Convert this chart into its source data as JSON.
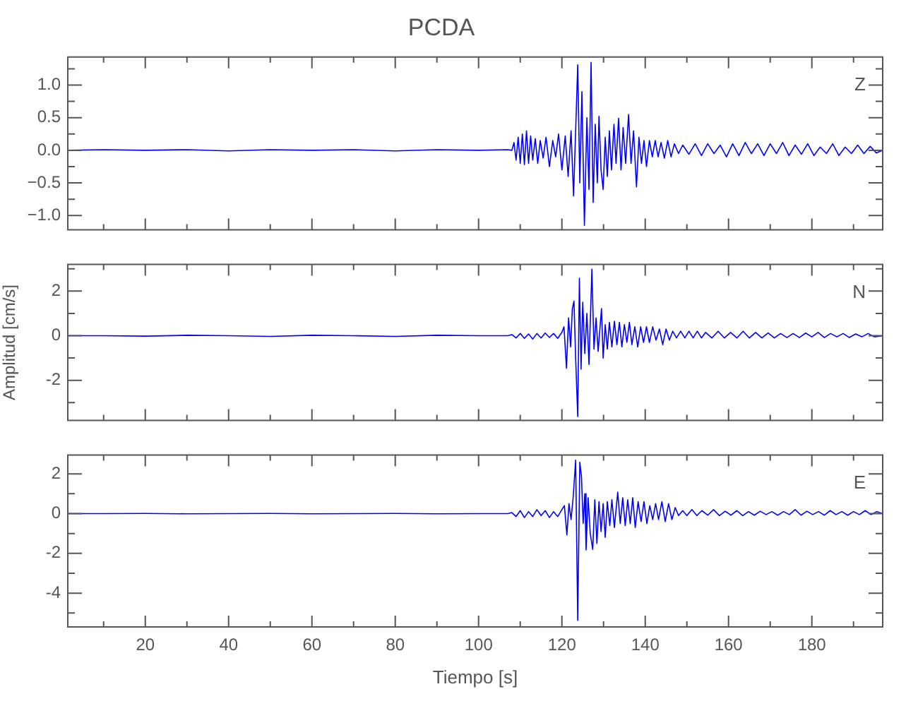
{
  "chart_data": [
    {
      "type": "line",
      "title": "PCDA",
      "annotations": [
        "Z"
      ],
      "xlim": [
        1.4,
        197
      ],
      "ylim": [
        -1.22,
        1.43
      ],
      "grid": false,
      "legend": false,
      "tick_labels": "y",
      "marker": "none",
      "line_style": "solid",
      "xticks": [
        {
          "value": 10,
          "label": null
        },
        20,
        {
          "value": 30,
          "label": null
        },
        40,
        {
          "value": 50,
          "label": null
        },
        60,
        {
          "value": 70,
          "label": null
        },
        80,
        {
          "value": 90,
          "label": null
        },
        100,
        {
          "value": 110,
          "label": null
        },
        120,
        {
          "value": 130,
          "label": null
        },
        140,
        {
          "value": 150,
          "label": null
        },
        160,
        {
          "value": 170,
          "label": null
        },
        180,
        {
          "value": 190,
          "label": null
        }
      ],
      "yticks": [
        {
          "value": 1.25,
          "label": null
        },
        {
          "value": 1,
          "label": "1.0"
        },
        {
          "value": 0.75,
          "label": null
        },
        {
          "value": 0.5,
          "label": "0.5"
        },
        {
          "value": 0.25,
          "label": null
        },
        {
          "value": 0,
          "label": "0.0"
        },
        {
          "value": -0.25,
          "label": null
        },
        {
          "value": -0.5,
          "label": "−0.5"
        },
        {
          "value": -0.75,
          "label": null
        },
        {
          "value": -1,
          "label": "−1.0"
        }
      ],
      "series": [
        {
          "color": "#0000ff",
          "x": [
            1.4,
            10,
            20,
            30,
            40,
            50,
            60,
            70,
            80,
            90,
            100,
            107,
            108,
            108.5,
            109,
            109.5,
            110,
            110.5,
            111,
            111.5,
            112,
            112.5,
            113,
            113.6,
            114.2,
            114.8,
            115.5,
            116.2,
            117,
            117.8,
            118.5,
            119.2,
            120,
            120.8,
            121.5,
            122.2,
            122.8,
            123.3,
            123.8,
            124.3,
            124.8,
            125.4,
            126,
            126.5,
            127,
            127.5,
            128,
            128.5,
            128.9,
            129.4,
            129.9,
            130.4,
            130.9,
            131.4,
            131.9,
            132.5,
            133,
            133.6,
            134.2,
            134.7,
            135.3,
            136,
            136.6,
            137.2,
            137.9,
            138.5,
            139.1,
            139.7,
            140.3,
            141,
            141.7,
            142.4,
            143.1,
            143.8,
            144.6,
            145.4,
            146.2,
            147,
            148,
            149,
            150.5,
            152,
            153.5,
            155,
            156.5,
            158,
            159.5,
            161,
            162.5,
            164,
            165.5,
            167,
            168.5,
            170,
            171.5,
            173,
            174.5,
            176,
            177.5,
            179,
            180.5,
            182,
            183.5,
            185,
            186.5,
            188,
            189.5,
            191,
            192.5,
            194,
            195.5,
            197
          ],
          "values": [
            0,
            0.01,
            0,
            0.01,
            -0.01,
            0.01,
            0,
            0.01,
            -0.01,
            0.01,
            0,
            0.01,
            0,
            0.12,
            -0.15,
            0.2,
            -0.2,
            0.25,
            -0.22,
            0.3,
            -0.2,
            0.22,
            -0.15,
            0.18,
            -0.2,
            0.15,
            -0.12,
            0.2,
            -0.25,
            0.15,
            -0.1,
            0.25,
            -0.3,
            0.22,
            -0.4,
            0.3,
            -0.7,
            0.3,
            1.31,
            -0.5,
            0.9,
            -1.15,
            0.5,
            -0.6,
            1.35,
            -0.8,
            0.4,
            -0.5,
            0.52,
            -0.3,
            -0.6,
            0.2,
            -0.4,
            0.3,
            -0.3,
            0.4,
            -0.2,
            0.49,
            -0.3,
            0.35,
            -0.2,
            0.55,
            -0.2,
            0.3,
            -0.56,
            0.2,
            -0.2,
            0.15,
            -0.25,
            0.15,
            -0.1,
            0.15,
            -0.1,
            0.12,
            -0.12,
            0.15,
            -0.1,
            0.1,
            -0.05,
            0.08,
            -0.06,
            0.1,
            -0.08,
            0.1,
            -0.05,
            0.08,
            -0.1,
            0.1,
            -0.08,
            0.12,
            -0.05,
            0.1,
            -0.08,
            0.1,
            -0.05,
            0.12,
            -0.08,
            0.08,
            -0.06,
            0.1,
            -0.08,
            0.05,
            -0.05,
            0.1,
            -0.08,
            0.05,
            -0.05,
            0.08,
            -0.05,
            0.06,
            -0.04,
            0
          ]
        }
      ]
    },
    {
      "type": "line",
      "ylabel": "Amplitud [cm/s]",
      "annotations": [
        "N"
      ],
      "xlim": [
        1.4,
        197
      ],
      "ylim": [
        -3.8,
        3.2
      ],
      "grid": false,
      "legend": false,
      "tick_labels": "y",
      "marker": "none",
      "line_style": "solid",
      "xticks": [
        {
          "value": 10,
          "label": null
        },
        20,
        {
          "value": 30,
          "label": null
        },
        40,
        {
          "value": 50,
          "label": null
        },
        60,
        {
          "value": 70,
          "label": null
        },
        80,
        {
          "value": 90,
          "label": null
        },
        100,
        {
          "value": 110,
          "label": null
        },
        120,
        {
          "value": 130,
          "label": null
        },
        140,
        {
          "value": 150,
          "label": null
        },
        160,
        {
          "value": 170,
          "label": null
        },
        180,
        {
          "value": 190,
          "label": null
        }
      ],
      "yticks": [
        {
          "value": 3,
          "label": null
        },
        2,
        {
          "value": 1,
          "label": null
        },
        0,
        {
          "value": -1,
          "label": null
        },
        -2,
        {
          "value": -3,
          "label": null
        }
      ],
      "series": [
        {
          "color": "#0000ff",
          "x": [
            1.4,
            10,
            20,
            30,
            40,
            50,
            60,
            70,
            80,
            90,
            100,
            107,
            108,
            109,
            110,
            111,
            112,
            113,
            114,
            115,
            116,
            117,
            118,
            119,
            120,
            120.5,
            121.1,
            121.6,
            122.1,
            122.5,
            122.9,
            123.3,
            123.8,
            124.2,
            124.6,
            125,
            125.5,
            126,
            126.5,
            127.2,
            127.7,
            128.2,
            128.7,
            129.5,
            129.9,
            130.4,
            130.9,
            131.4,
            132,
            132.6,
            133.2,
            133.8,
            134.4,
            135,
            135.6,
            136.2,
            136.8,
            137.5,
            138.2,
            138.9,
            139.6,
            140.3,
            141,
            141.8,
            142.6,
            143.4,
            144.2,
            145,
            145.8,
            146.6,
            147.5,
            148.5,
            149.5,
            150.5,
            151.5,
            152.5,
            153.5,
            154.5,
            156,
            157.5,
            159,
            160.5,
            162,
            163.5,
            165,
            166.5,
            168,
            169.5,
            171,
            172.5,
            174,
            175.5,
            177,
            178.5,
            180,
            181.5,
            183,
            184.5,
            186,
            187.5,
            189,
            190.5,
            192,
            193.5,
            195,
            197
          ],
          "values": [
            0,
            0,
            -0.02,
            0.02,
            0,
            -0.03,
            0.02,
            0,
            -0.03,
            0.02,
            0,
            0,
            0.05,
            -0.1,
            0.1,
            -0.12,
            0.08,
            -0.15,
            0.1,
            -0.1,
            0.12,
            -0.08,
            0.1,
            -0.12,
            0.15,
            0.4,
            -1.46,
            0.8,
            -0.5,
            1.2,
            1.55,
            -1,
            -3.62,
            2.58,
            -1.5,
            1.5,
            -0.8,
            1,
            -1.29,
            2.98,
            -0.6,
            0.8,
            -0.7,
            1.22,
            -1,
            0.5,
            -0.6,
            0.6,
            -0.5,
            0.65,
            -0.4,
            0.6,
            -0.5,
            0.5,
            -0.3,
            0.6,
            -0.4,
            0.4,
            -0.5,
            0.4,
            -0.3,
            0.4,
            -0.3,
            0.4,
            -0.2,
            0.3,
            -0.4,
            0.3,
            -0.2,
            0.2,
            -0.1,
            0.2,
            -0.1,
            0.2,
            -0.1,
            0.2,
            -0.1,
            0.15,
            -0.1,
            0.2,
            -0.1,
            0.15,
            -0.1,
            0.2,
            -0.1,
            0.15,
            -0.1,
            0.12,
            -0.1,
            0.1,
            -0.08,
            0.1,
            -0.08,
            0.12,
            -0.05,
            0.15,
            -0.08,
            0.1,
            -0.05,
            0.1,
            -0.08,
            0.08,
            -0.05,
            0.1,
            -0.05,
            0
          ]
        }
      ]
    },
    {
      "type": "line",
      "xlabel": "Tiempo [s]",
      "annotations": [
        "E"
      ],
      "xlim": [
        1.4,
        197
      ],
      "ylim": [
        -5.7,
        2.95
      ],
      "grid": false,
      "legend": false,
      "marker": "none",
      "line_style": "solid",
      "xticks": [
        {
          "value": 10,
          "label": null
        },
        20,
        {
          "value": 30,
          "label": null
        },
        40,
        {
          "value": 50,
          "label": null
        },
        60,
        {
          "value": 70,
          "label": null
        },
        80,
        {
          "value": 90,
          "label": null
        },
        100,
        {
          "value": 110,
          "label": null
        },
        120,
        {
          "value": 130,
          "label": null
        },
        140,
        {
          "value": 150,
          "label": null
        },
        160,
        {
          "value": 170,
          "label": null
        },
        180,
        {
          "value": 190,
          "label": null
        }
      ],
      "yticks": [
        2,
        {
          "value": 1,
          "label": null
        },
        0,
        {
          "value": -1,
          "label": null
        },
        -2,
        {
          "value": -3,
          "label": null
        },
        -4,
        {
          "value": -5,
          "label": null
        }
      ],
      "series": [
        {
          "color": "#0000ff",
          "x": [
            1.4,
            10,
            20,
            30,
            40,
            50,
            60,
            70,
            80,
            90,
            100,
            107,
            108,
            109,
            110,
            111,
            112,
            113,
            114,
            115,
            116,
            117,
            118,
            119,
            120,
            120.6,
            121.2,
            121.7,
            122.2,
            122.7,
            123.3,
            123.8,
            124.3,
            124.7,
            125.1,
            125.5,
            125.8,
            126.3,
            126.8,
            127.4,
            127.9,
            128.4,
            128.9,
            129.4,
            129.9,
            130.4,
            130.9,
            131.5,
            132,
            132.6,
            133.4,
            134,
            134.6,
            135.2,
            135.8,
            136.4,
            137,
            137.6,
            138.3,
            139,
            139.7,
            140.4,
            141.1,
            141.8,
            142.5,
            143.2,
            144,
            144.8,
            145.6,
            146.4,
            147.2,
            148,
            149,
            150,
            151.2,
            152.4,
            153.6,
            155,
            156.4,
            157.8,
            159.2,
            160.6,
            162,
            163.4,
            164.8,
            166.2,
            167.6,
            169,
            170.4,
            171.8,
            173.2,
            174.6,
            176,
            177.4,
            178.8,
            180.2,
            181.6,
            183,
            184.4,
            185.8,
            187.2,
            188.6,
            190,
            191.4,
            192.8,
            194.2,
            195.6,
            197
          ],
          "values": [
            0,
            0,
            0.01,
            -0.01,
            0,
            0.01,
            -0.01,
            0,
            0.01,
            -0.01,
            0,
            0,
            0.05,
            -0.15,
            0.15,
            -0.2,
            0.1,
            -0.15,
            0.2,
            -0.1,
            0.15,
            -0.2,
            0.1,
            -0.15,
            0.2,
            0.4,
            -1.07,
            0.5,
            -0.3,
            0.8,
            2.69,
            -5.37,
            2.58,
            1.85,
            -0.5,
            1,
            -1.83,
            0.8,
            -1,
            -1.8,
            0.7,
            -1.5,
            0.6,
            -0.9,
            0.5,
            -1.2,
            0.6,
            -0.6,
            0.7,
            -0.7,
            1.08,
            -0.5,
            0.8,
            -0.6,
            0.7,
            -0.5,
            0.8,
            -0.7,
            0.6,
            -0.4,
            0.6,
            -0.5,
            0.4,
            -0.3,
            0.5,
            -0.3,
            0.6,
            -0.4,
            0.5,
            -0.3,
            0.3,
            -0.1,
            0.15,
            -0.1,
            0.2,
            -0.1,
            0.15,
            -0.08,
            0.2,
            -0.1,
            0.12,
            -0.08,
            0.15,
            -0.1,
            0.1,
            -0.08,
            0.12,
            -0.05,
            0.1,
            -0.08,
            0.1,
            -0.05,
            0.2,
            -0.08,
            0.12,
            -0.05,
            0.1,
            -0.08,
            0.15,
            -0.05,
            0.1,
            -0.08,
            0.1,
            -0.05,
            0.15,
            -0.05,
            0.1,
            0
          ]
        }
      ]
    }
  ]
}
